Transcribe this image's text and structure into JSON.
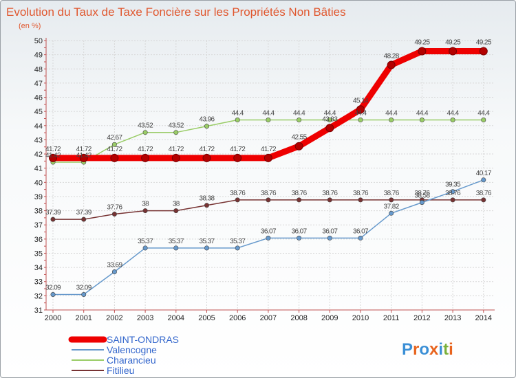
{
  "chart_data": {
    "type": "line",
    "title": "Evolution du Taux de Taxe Foncière sur les Propriétés Non Bâties",
    "subtitle": "(en %)",
    "x": [
      "2000",
      "2001",
      "2002",
      "2003",
      "2004",
      "2005",
      "2006",
      "2007",
      "2008",
      "2009",
      "2010",
      "2011",
      "2012",
      "2013",
      "2014"
    ],
    "ylim": [
      31,
      50
    ],
    "yticks": [
      31,
      32,
      33,
      34,
      35,
      36,
      37,
      38,
      39,
      40,
      41,
      42,
      43,
      44,
      45,
      46,
      47,
      48,
      49,
      50
    ],
    "grid": true,
    "series": [
      {
        "name": "SAINT-ONDRAS",
        "color": "#ee0000",
        "values": [
          41.72,
          41.72,
          41.72,
          41.72,
          41.72,
          41.72,
          41.72,
          41.72,
          42.55,
          43.83,
          45.14,
          48.28,
          49.25,
          49.25,
          49.25
        ],
        "labels": [
          "41.72",
          "41.72",
          "41.72",
          "41.72",
          "41.72",
          "41.72",
          "41.72",
          "41.72",
          "42.55",
          "43.83",
          "45.14",
          "48.28",
          "49.25",
          "49.25",
          "49.25"
        ]
      },
      {
        "name": "Valencogne",
        "color": "#6699cc",
        "values": [
          32.09,
          32.09,
          33.69,
          35.37,
          35.37,
          35.37,
          35.37,
          36.07,
          36.07,
          36.07,
          36.07,
          37.82,
          38.58,
          39.35,
          40.17
        ],
        "labels": [
          "32.09",
          "32.09",
          "33.69",
          "35.37",
          "35.37",
          "35.37",
          "35.37",
          "36.07",
          "36.07",
          "36.07",
          "36.07",
          "37.82",
          "38.58",
          "39.35",
          "40.17"
        ]
      },
      {
        "name": "Charancieu",
        "color": "#99cc66",
        "values": [
          41.42,
          41.42,
          42.67,
          43.52,
          43.52,
          43.96,
          44.4,
          44.4,
          44.4,
          44.4,
          44.4,
          44.4,
          44.4,
          44.4,
          44.4
        ],
        "labels": [
          "41.42",
          "41.42",
          "42.67",
          "43.52",
          "43.52",
          "43.96",
          "44.4",
          "44.4",
          "44.4",
          "44.4",
          "44.4",
          "44.4",
          "44.4",
          "44.4",
          "44.4"
        ]
      },
      {
        "name": "Fitilieu",
        "color": "#773333",
        "values": [
          37.39,
          37.39,
          37.76,
          38,
          38,
          38.38,
          38.76,
          38.76,
          38.76,
          38.76,
          38.76,
          38.76,
          38.76,
          38.76,
          38.76
        ],
        "labels": [
          "37.39",
          "37.39",
          "37.76",
          "38",
          "38",
          "38.38",
          "38.76",
          "38.76",
          "38.76",
          "38.76",
          "38.76",
          "38.76",
          "38.76",
          "38.76",
          "38.76"
        ]
      }
    ]
  },
  "logo": {
    "text": "Proxiti",
    "colors": [
      "#3b8fd6",
      "#e8641e",
      "#3b8fd6",
      "#e8641e",
      "#3b8fd6",
      "#7bb03a",
      "#e8641e"
    ]
  }
}
